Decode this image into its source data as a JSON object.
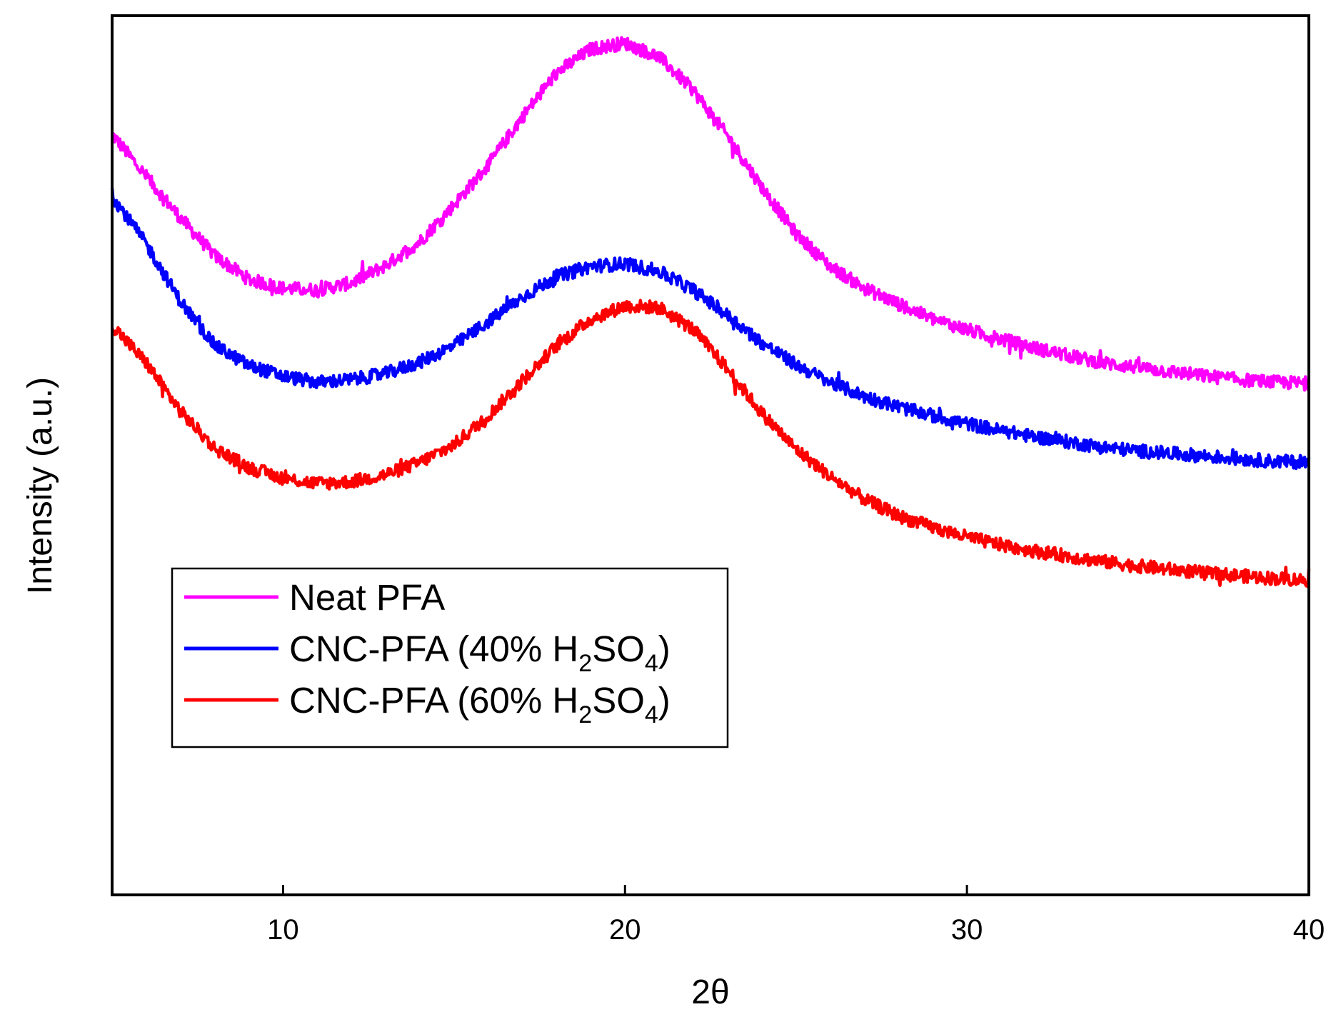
{
  "chart_data": {
    "type": "line",
    "xlabel": "2θ",
    "ylabel": "Intensity (a.u.)",
    "xlim": [
      5,
      40
    ],
    "ylim": [
      0,
      100
    ],
    "xticks": [
      10,
      20,
      30,
      40
    ],
    "yticks_shown": false,
    "grid": false,
    "legend_position": "center-left",
    "series": [
      {
        "name": "Neat PFA",
        "label_main": "Neat PFA",
        "color": "#ff00ff",
        "x": [
          5,
          6,
          7,
          8,
          9,
          10,
          11,
          12,
          13,
          14,
          15,
          16,
          17,
          18,
          19,
          20,
          21,
          22,
          23,
          24,
          25,
          26,
          27,
          28,
          29,
          30,
          31,
          32,
          33,
          34,
          35,
          36,
          37,
          38,
          39,
          40
        ],
        "y": [
          86.5,
          81.7,
          77.0,
          72.7,
          70.0,
          69.0,
          68.8,
          69.6,
          71.6,
          74.3,
          78.5,
          83.0,
          88.5,
          93.5,
          96.2,
          96.9,
          95.3,
          91.5,
          86.3,
          80.5,
          75.2,
          71.5,
          69.0,
          67.2,
          65.5,
          64.3,
          63.2,
          62.2,
          61.3,
          60.5,
          60.0,
          59.5,
          59.0,
          58.6,
          58.3,
          58.2
        ]
      },
      {
        "name": "CNC-PFA (40% H2SO4)",
        "label_main": "CNC-PFA (40% H",
        "label_sub1": "2",
        "label_mid": "SO",
        "label_sub2": "4",
        "label_end": ")",
        "color": "#0000ff",
        "x": [
          5,
          6,
          7,
          8,
          9,
          10,
          11,
          12,
          13,
          14,
          15,
          16,
          17,
          18,
          19,
          20,
          21,
          22,
          23,
          24,
          25,
          26,
          27,
          28,
          29,
          30,
          31,
          32,
          33,
          34,
          35,
          36,
          37,
          38,
          39,
          40
        ],
        "y": [
          79.5,
          74.0,
          67.5,
          62.5,
          60.2,
          59.0,
          58.3,
          58.6,
          59.3,
          60.6,
          62.5,
          65.2,
          68.0,
          70.3,
          71.5,
          71.8,
          70.9,
          68.8,
          65.9,
          62.8,
          60.3,
          58.3,
          56.7,
          55.5,
          54.5,
          53.6,
          52.8,
          52.1,
          51.5,
          50.9,
          50.5,
          50.2,
          49.9,
          49.6,
          49.3,
          49.2
        ]
      },
      {
        "name": "CNC-PFA (60% H2SO4)",
        "label_main": "CNC-PFA (60% H",
        "label_sub1": "2",
        "label_mid": "SO",
        "label_sub2": "4",
        "label_end": ")",
        "color": "#ff0000",
        "x": [
          5,
          6,
          7,
          8,
          9,
          10,
          11,
          12,
          13,
          14,
          15,
          16,
          17,
          18,
          19,
          20,
          21,
          22,
          23,
          24,
          25,
          26,
          27,
          28,
          29,
          30,
          31,
          32,
          33,
          34,
          35,
          36,
          37,
          38,
          39,
          40
        ],
        "y": [
          64.8,
          60.5,
          55.0,
          50.8,
          48.6,
          47.4,
          46.8,
          47.0,
          47.8,
          49.2,
          51.2,
          54.5,
          58.5,
          62.5,
          65.5,
          67.0,
          66.8,
          64.3,
          59.8,
          54.8,
          50.7,
          47.6,
          45.0,
          43.1,
          41.8,
          40.7,
          39.8,
          39.1,
          38.5,
          37.9,
          37.4,
          37.0,
          36.6,
          36.3,
          36.0,
          35.8
        ]
      }
    ]
  }
}
